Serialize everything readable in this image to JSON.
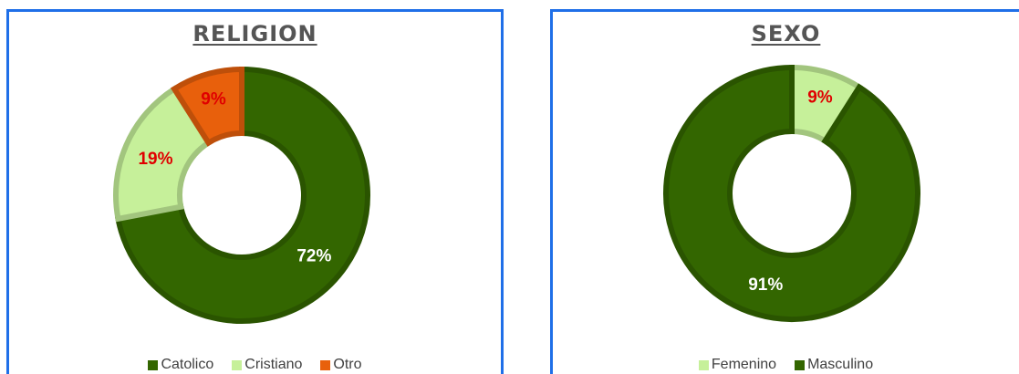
{
  "chart_data": [
    {
      "type": "pie",
      "variant": "donut",
      "title": "RELIGION",
      "categories": [
        "Catolico",
        "Cristiano",
        "Otro"
      ],
      "values": [
        72,
        19,
        9
      ],
      "labels": [
        "72%",
        "19%",
        "9%"
      ],
      "label_colors": [
        "#ffffff",
        "#e00000",
        "#e00000"
      ],
      "colors": [
        "#336600",
        "#c6f09a",
        "#e8600c"
      ],
      "legend_position": "bottom"
    },
    {
      "type": "pie",
      "variant": "donut",
      "title": "SEXO",
      "categories": [
        "Femenino",
        "Masculino"
      ],
      "values": [
        9,
        91
      ],
      "labels": [
        "9%",
        "91%"
      ],
      "label_colors": [
        "#e00000",
        "#ffffff"
      ],
      "colors": [
        "#c6f09a",
        "#336600"
      ],
      "legend_position": "bottom"
    }
  ]
}
